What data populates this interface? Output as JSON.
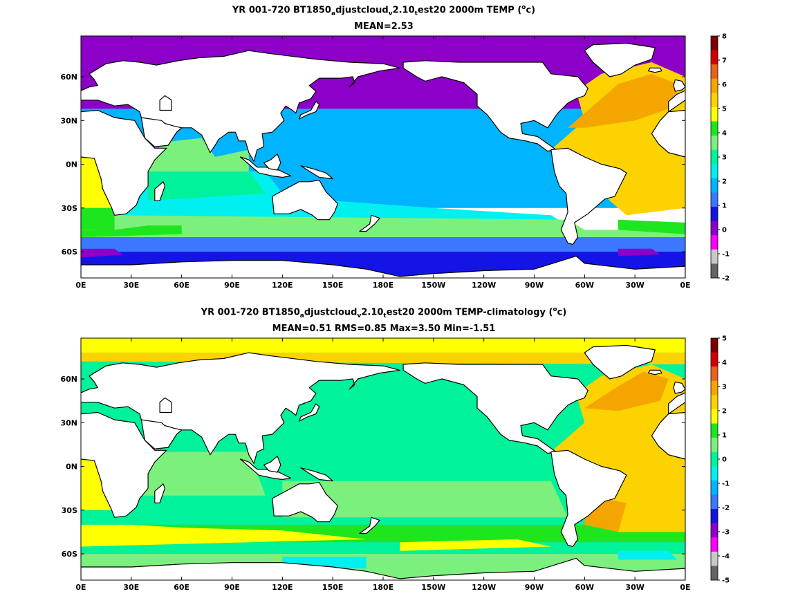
{
  "panels": [
    {
      "title": {
        "prefix": "YR 001-720 BT1850",
        "sub1": "a",
        "mid1": "djustcloud",
        "sub2": "v",
        "mid2": "2.10",
        "sub3": "t",
        "mid3": "est20 2000m TEMP (",
        "sup": "o",
        "suffix": "c)"
      },
      "stats": "MEAN=2.53",
      "colorbar": {
        "labels": [
          "8",
          "7",
          "6",
          "5",
          "4",
          "3",
          "2",
          "1",
          "0",
          "-1",
          "-2"
        ],
        "colors": [
          "#7f0000",
          "#d40000",
          "#e8641e",
          "#f5a500",
          "#fcd200",
          "#ffff00",
          "#1ee61e",
          "#7cf07c",
          "#00f29a",
          "#00f0f0",
          "#00b4ff",
          "#3c78ff",
          "#1414e6",
          "#8c00c8",
          "#ff00ff",
          "#c8c8c8",
          "#646464"
        ]
      },
      "map": {
        "lat_labels": [
          "60N",
          "30N",
          "0N",
          "30S",
          "60S"
        ],
        "lon_labels": [
          "0E",
          "30E",
          "60E",
          "90E",
          "120E",
          "150E",
          "180E",
          "150W",
          "120W",
          "90W",
          "60W",
          "30W",
          "0E"
        ]
      }
    },
    {
      "title": {
        "prefix": "YR 001-720 BT1850",
        "sub1": "a",
        "mid1": "djustcloud",
        "sub2": "v",
        "mid2": "2.10",
        "sub3": "t",
        "mid3": "est20 2000m TEMP-climatology (",
        "sup": "o",
        "suffix": "c)"
      },
      "stats": "MEAN=0.51   RMS=0.85   Max=3.50   Min=-1.51",
      "colorbar": {
        "labels": [
          "5",
          "4",
          "3",
          "2",
          "1",
          "0",
          "-1",
          "-2",
          "-3",
          "-4",
          "-5"
        ],
        "colors": [
          "#7f0000",
          "#d40000",
          "#e8641e",
          "#f5a500",
          "#fcd200",
          "#ffff00",
          "#1ee61e",
          "#7cf07c",
          "#00f29a",
          "#00f0f0",
          "#00b4ff",
          "#3c78ff",
          "#1414e6",
          "#8c00c8",
          "#ff00ff",
          "#c8c8c8",
          "#646464"
        ]
      },
      "map": {
        "lat_labels": [
          "60N",
          "30N",
          "0N",
          "30S",
          "60S"
        ],
        "lon_labels": [
          "0E",
          "30E",
          "60E",
          "90E",
          "120E",
          "150E",
          "180E",
          "150W",
          "120W",
          "90W",
          "60W",
          "30W",
          "0E"
        ]
      }
    }
  ]
}
